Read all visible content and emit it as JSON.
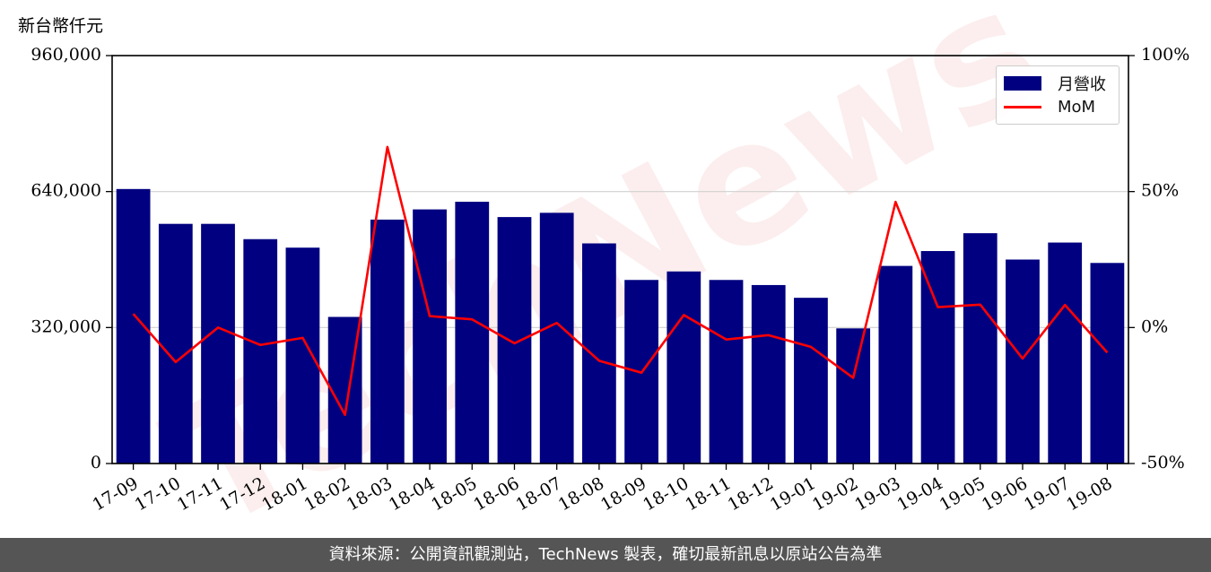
{
  "header": {
    "unit_label": "新台幣仟元"
  },
  "watermark": "TechNews",
  "footer": {
    "source_text": "資料來源：公開資訊觀測站，TechNews 製表，確切最新訊息以原站公告為準"
  },
  "chart_data": {
    "type": "bar",
    "categories": [
      "17-09",
      "17-10",
      "17-11",
      "17-12",
      "18-01",
      "18-02",
      "18-03",
      "18-04",
      "18-05",
      "18-06",
      "18-07",
      "18-08",
      "18-09",
      "18-10",
      "18-11",
      "18-12",
      "19-01",
      "19-02",
      "19-03",
      "19-04",
      "19-05",
      "19-06",
      "19-07",
      "19-08"
    ],
    "series": [
      {
        "name": "月營收",
        "type": "bar",
        "axis": "left",
        "color": "#000080",
        "values": [
          646000,
          564000,
          564000,
          528000,
          508000,
          345000,
          574000,
          598000,
          616000,
          580000,
          590000,
          518000,
          432000,
          452000,
          432000,
          420000,
          390000,
          318000,
          465000,
          500000,
          542000,
          480000,
          520000,
          472000
        ]
      },
      {
        "name": "MoM",
        "type": "line",
        "axis": "right",
        "color": "#ff0000",
        "values": [
          5,
          -12.7,
          0,
          -6.4,
          -3.8,
          -32.1,
          66.4,
          4.2,
          3.0,
          -5.8,
          1.7,
          -12.2,
          -16.6,
          4.6,
          -4.4,
          -2.8,
          -7.1,
          -18.5,
          46.2,
          7.5,
          8.4,
          -11.4,
          8.3,
          -9.2
        ]
      }
    ],
    "yaxis_left": {
      "min": 0,
      "max": 960000,
      "ticks": [
        "0",
        "320,000",
        "640,000",
        "960,000"
      ]
    },
    "yaxis_right": {
      "min": -50,
      "max": 100,
      "ticks": [
        "-50%",
        "0%",
        "50%",
        "100%"
      ]
    },
    "legend_position": "top-right",
    "grid": "horizontal"
  }
}
